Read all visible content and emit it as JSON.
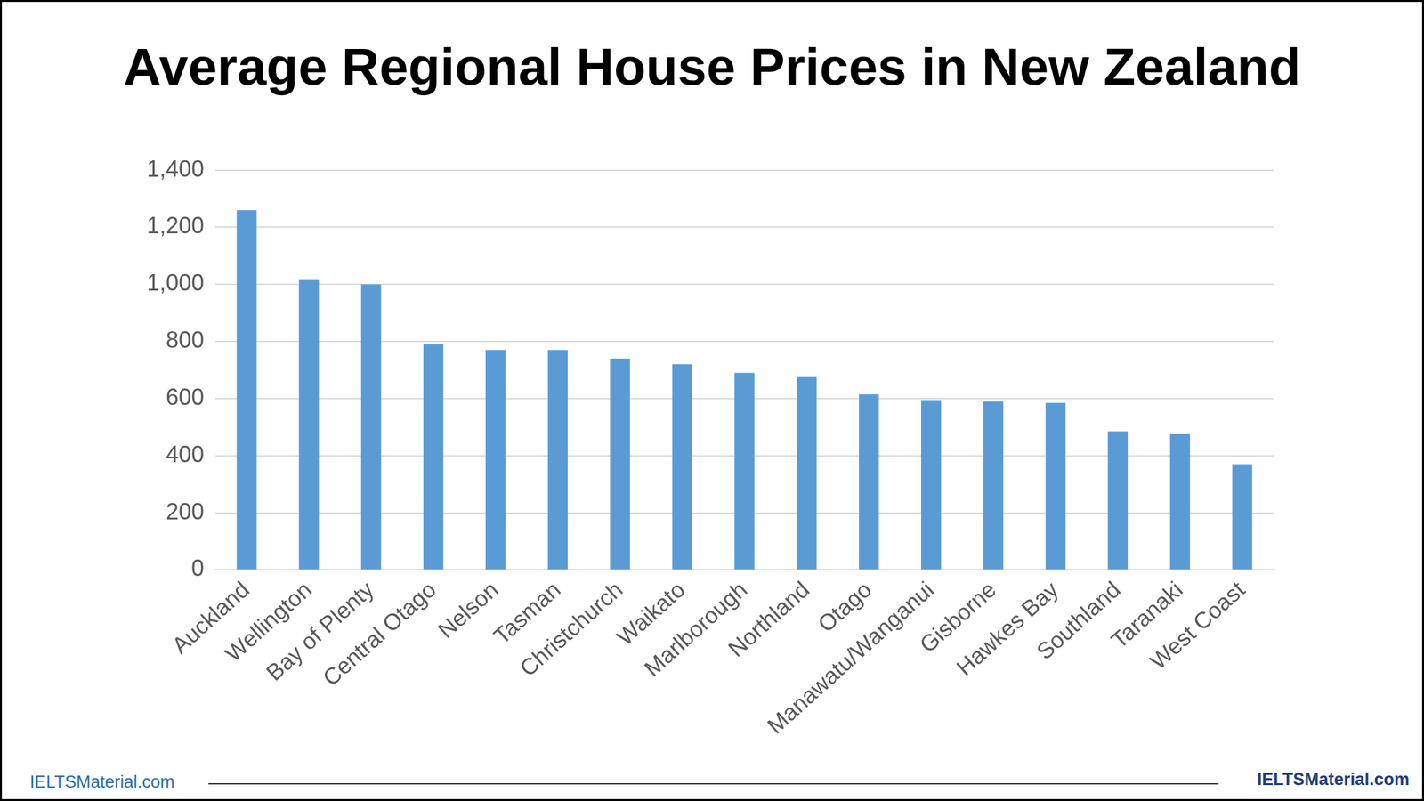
{
  "chart_data": {
    "type": "bar",
    "title": "Average Regional House Prices in New Zealand",
    "categories": [
      "Auckland",
      "Wellington",
      "Bay of Plenty",
      "Central Otago",
      "Nelson",
      "Tasman",
      "Christchurch",
      "Waikato",
      "Marlborough",
      "Northland",
      "Otago",
      "Manawatu/Wanganui",
      "Gisborne",
      "Hawkes Bay",
      "Southland",
      "Taranaki",
      "West Coast"
    ],
    "values": [
      1260,
      1015,
      1000,
      790,
      770,
      770,
      740,
      720,
      690,
      675,
      615,
      595,
      590,
      585,
      485,
      475,
      370
    ],
    "color": "#5b9bd5",
    "ylim": [
      0,
      1400
    ],
    "yticks": [
      0,
      200,
      400,
      600,
      800,
      {
        "value": 1000,
        "label": "1,000"
      },
      {
        "value": 1200,
        "label": "1,200"
      },
      {
        "value": 1400,
        "label": "1,400"
      }
    ],
    "grid": true,
    "footer": [
      "IELTSMaterial.com",
      "IELTSMaterial.com"
    ]
  }
}
